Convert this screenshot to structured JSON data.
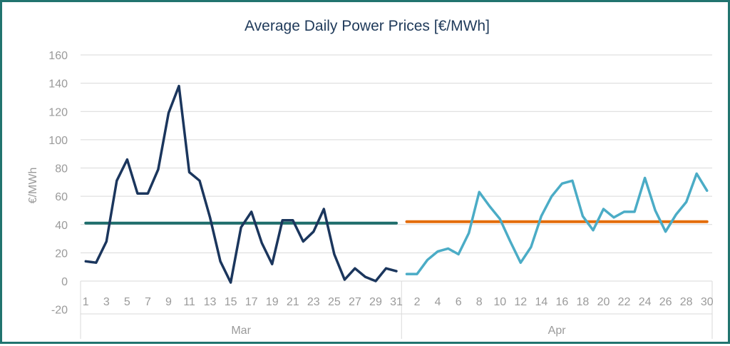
{
  "chart_data": {
    "type": "line",
    "title": "Average Daily Power Prices [€/MWh]",
    "ylabel": "€/MWh",
    "xlabel": "",
    "ylim": [
      -20,
      160
    ],
    "yticks": [
      -20,
      0,
      20,
      40,
      60,
      80,
      100,
      120,
      140,
      160
    ],
    "grid": true,
    "legend": "none",
    "groups": [
      {
        "name": "Mar",
        "days": [
          1,
          2,
          3,
          4,
          5,
          6,
          7,
          8,
          9,
          10,
          11,
          12,
          13,
          14,
          15,
          16,
          17,
          18,
          19,
          20,
          21,
          22,
          23,
          24,
          25,
          26,
          27,
          28,
          29,
          30,
          31
        ],
        "tick_labels": [
          "1",
          "3",
          "5",
          "7",
          "9",
          "11",
          "13",
          "15",
          "17",
          "19",
          "21",
          "23",
          "25",
          "27",
          "29",
          "31"
        ],
        "daily": {
          "color": "#1b365d",
          "values": [
            14,
            13,
            28,
            71,
            86,
            62,
            62,
            79,
            119,
            138,
            77,
            71,
            45,
            14,
            -1,
            38,
            49,
            27,
            12,
            43,
            43,
            28,
            35,
            51,
            19,
            1,
            9,
            3,
            0,
            9,
            7
          ]
        },
        "average": {
          "color": "#1f6e6c",
          "value": 41
        }
      },
      {
        "name": "Apr",
        "days": [
          1,
          2,
          3,
          4,
          5,
          6,
          7,
          8,
          9,
          10,
          11,
          12,
          13,
          14,
          15,
          16,
          17,
          18,
          19,
          20,
          21,
          22,
          23,
          24,
          25,
          26,
          27,
          28,
          29,
          30
        ],
        "tick_labels": [
          "2",
          "4",
          "6",
          "8",
          "10",
          "12",
          "14",
          "16",
          "18",
          "20",
          "22",
          "24",
          "26",
          "28",
          "30"
        ],
        "daily": {
          "color": "#4bacc6",
          "values": [
            5,
            5,
            15,
            21,
            23,
            19,
            34,
            63,
            53,
            44,
            28,
            13,
            24,
            46,
            60,
            69,
            71,
            46,
            36,
            51,
            45,
            49,
            49,
            73,
            50,
            35,
            47,
            56,
            76,
            64
          ]
        },
        "average": {
          "color": "#e36c09",
          "value": 42
        }
      }
    ]
  }
}
